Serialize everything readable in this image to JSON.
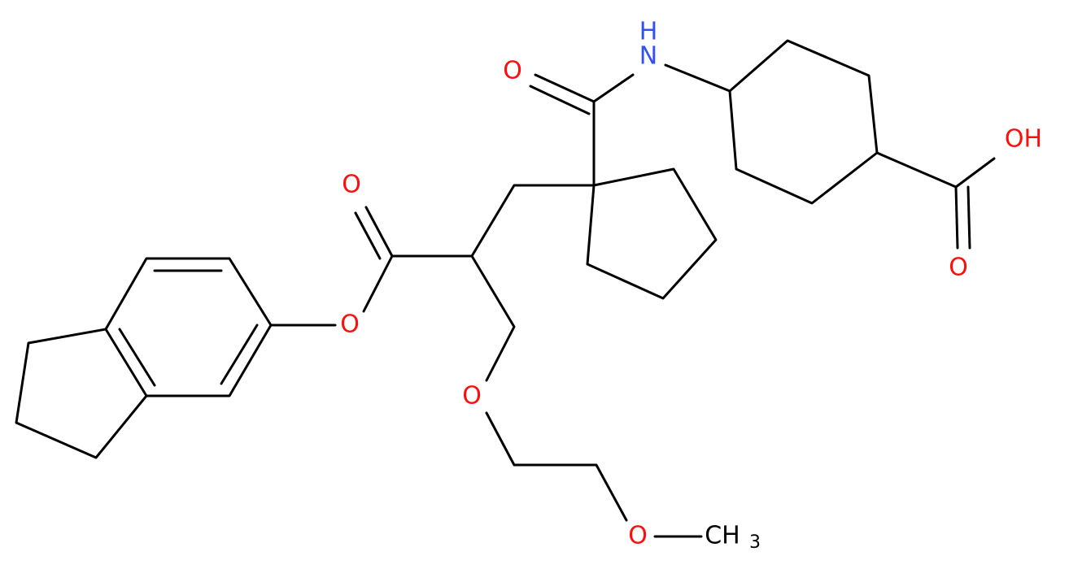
{
  "atoms": {
    "carbonyl_o_amide": "O",
    "amide_n": "N",
    "amide_h": "H",
    "acid_oh": "OH",
    "acid_o": "O",
    "ester_carbonyl_o": "O",
    "ester_o": "O",
    "ether_o1": "O",
    "ether_o2": "O",
    "methyl": "CH",
    "methyl_sub": "3"
  }
}
